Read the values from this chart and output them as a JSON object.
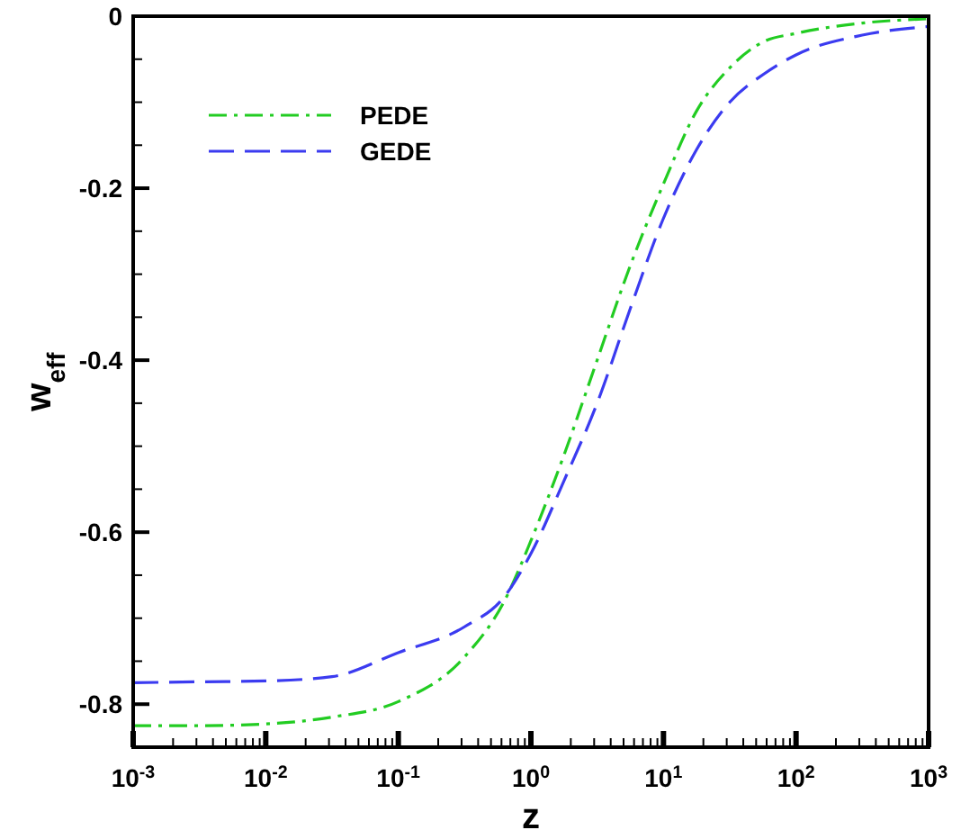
{
  "chart_data": {
    "type": "line",
    "xlabel": "z",
    "ylabel": "w$_{eff}$",
    "log": "x",
    "xlim": [
      0.001,
      1000
    ],
    "ylim": [
      -0.85,
      0
    ],
    "x": [
      0.001,
      0.00316,
      0.01,
      0.0316,
      0.1,
      0.316,
      0.631,
      1,
      1.78,
      3.16,
      5.62,
      10,
      17.8,
      31.6,
      56.2,
      100,
      316,
      1000
    ],
    "xticks": [
      {
        "value": 0.001,
        "label": "10$^{-3}$"
      },
      {
        "value": 0.002,
        "label": null
      },
      {
        "value": 0.003,
        "label": null
      },
      {
        "value": 0.004,
        "label": null
      },
      {
        "value": 0.005,
        "label": null
      },
      {
        "value": 0.006,
        "label": null
      },
      {
        "value": 0.007,
        "label": null
      },
      {
        "value": 0.008,
        "label": null
      },
      {
        "value": 0.009,
        "label": null
      },
      {
        "value": 0.01,
        "label": "10$^{-2}$"
      },
      {
        "value": 0.02,
        "label": null
      },
      {
        "value": 0.03,
        "label": null
      },
      {
        "value": 0.04,
        "label": null
      },
      {
        "value": 0.05,
        "label": null
      },
      {
        "value": 0.06,
        "label": null
      },
      {
        "value": 0.07,
        "label": null
      },
      {
        "value": 0.08,
        "label": null
      },
      {
        "value": 0.09,
        "label": null
      },
      {
        "value": 0.1,
        "label": "10$^{-1}$"
      },
      {
        "value": 0.2,
        "label": null
      },
      {
        "value": 0.3,
        "label": null
      },
      {
        "value": 0.4,
        "label": null
      },
      {
        "value": 0.5,
        "label": null
      },
      {
        "value": 0.6,
        "label": null
      },
      {
        "value": 0.7,
        "label": null
      },
      {
        "value": 0.8,
        "label": null
      },
      {
        "value": 0.9,
        "label": null
      },
      {
        "value": 1,
        "label": "10$^{0}$"
      },
      {
        "value": 2,
        "label": null
      },
      {
        "value": 3,
        "label": null
      },
      {
        "value": 4,
        "label": null
      },
      {
        "value": 5,
        "label": null
      },
      {
        "value": 6,
        "label": null
      },
      {
        "value": 7,
        "label": null
      },
      {
        "value": 8,
        "label": null
      },
      {
        "value": 9,
        "label": null
      },
      {
        "value": 10,
        "label": "10$^{1}$"
      },
      {
        "value": 20,
        "label": null
      },
      {
        "value": 30,
        "label": null
      },
      {
        "value": 40,
        "label": null
      },
      {
        "value": 50,
        "label": null
      },
      {
        "value": 60,
        "label": null
      },
      {
        "value": 70,
        "label": null
      },
      {
        "value": 80,
        "label": null
      },
      {
        "value": 90,
        "label": null
      },
      {
        "value": 100,
        "label": "10$^{2}$"
      },
      {
        "value": 200,
        "label": null
      },
      {
        "value": 300,
        "label": null
      },
      {
        "value": 400,
        "label": null
      },
      {
        "value": 500,
        "label": null
      },
      {
        "value": 600,
        "label": null
      },
      {
        "value": 700,
        "label": null
      },
      {
        "value": 800,
        "label": null
      },
      {
        "value": 900,
        "label": null
      },
      {
        "value": 1000,
        "label": "10$^{3}$"
      }
    ],
    "yticks": [
      -0.8,
      {
        "value": -0.75,
        "label": null
      },
      {
        "value": -0.7,
        "label": null
      },
      {
        "value": -0.65,
        "label": null
      },
      -0.6,
      {
        "value": -0.55,
        "label": null
      },
      {
        "value": -0.5,
        "label": null
      },
      {
        "value": -0.45,
        "label": null
      },
      -0.4,
      {
        "value": -0.35,
        "label": null
      },
      {
        "value": -0.3,
        "label": null
      },
      {
        "value": -0.25,
        "label": null
      },
      -0.2,
      {
        "value": -0.15,
        "label": null
      },
      {
        "value": -0.1,
        "label": null
      },
      {
        "value": -0.05,
        "label": null
      },
      0
    ],
    "legend": "top left",
    "grid": false,
    "series": [
      {
        "name": "PEDE",
        "color": "#22cc22",
        "line_style": "dotted",
        "values": [
          -0.825,
          -0.825,
          -0.823,
          -0.815,
          -0.797,
          -0.745,
          -0.68,
          -0.61,
          -0.51,
          -0.4,
          -0.29,
          -0.195,
          -0.11,
          -0.06,
          -0.03,
          -0.02,
          -0.008,
          -0.003
        ]
      },
      {
        "name": "GEDE",
        "color": "#3b3bf0",
        "line_style": "dashed",
        "values": [
          -0.775,
          -0.774,
          -0.773,
          -0.768,
          -0.74,
          -0.71,
          -0.675,
          -0.625,
          -0.54,
          -0.45,
          -0.34,
          -0.235,
          -0.155,
          -0.1,
          -0.068,
          -0.045,
          -0.022,
          -0.012
        ]
      }
    ]
  }
}
